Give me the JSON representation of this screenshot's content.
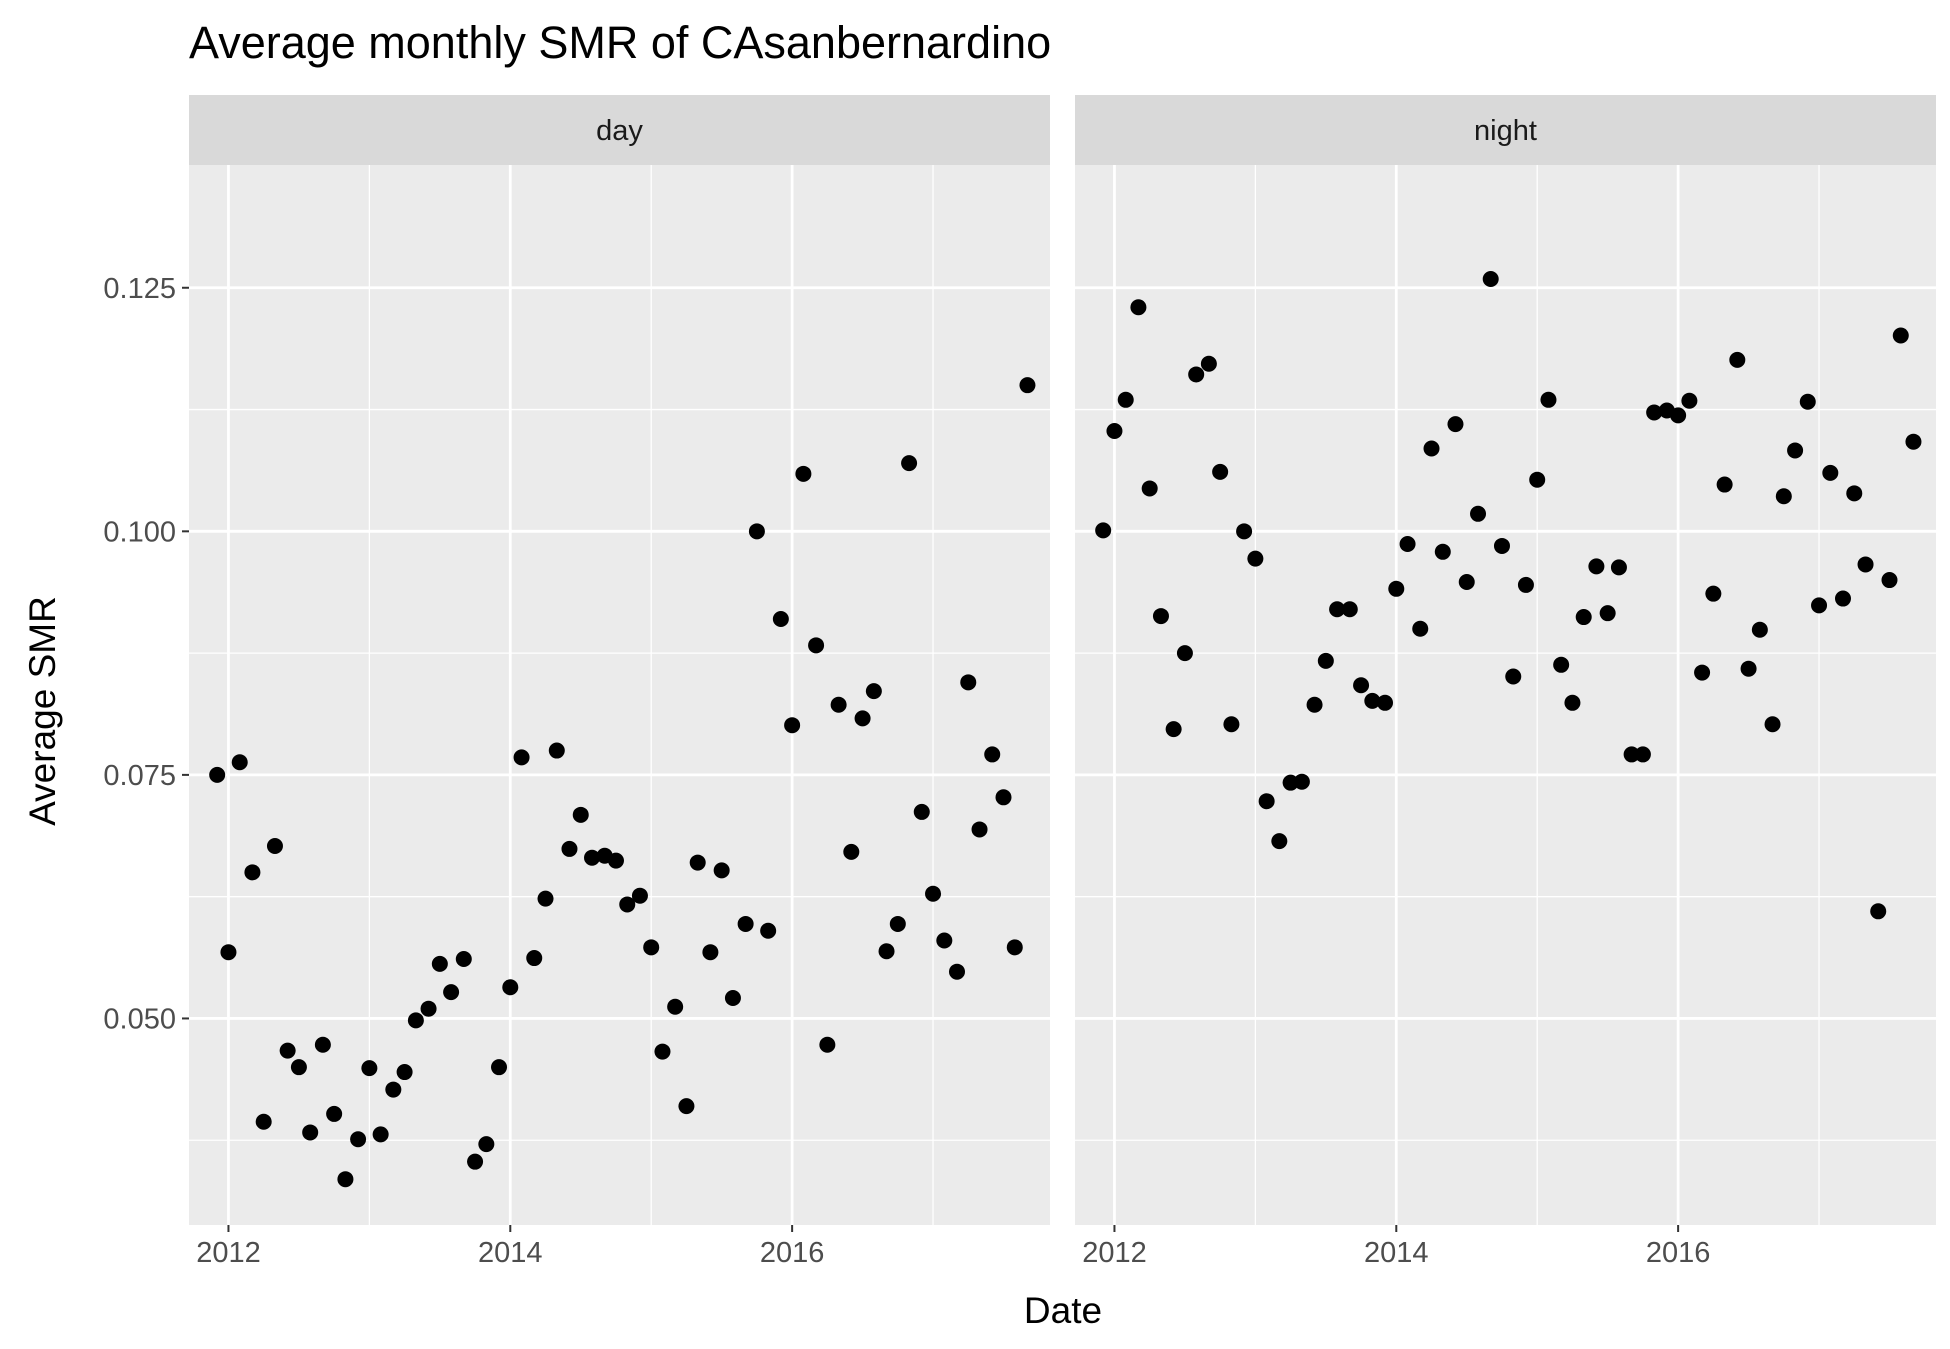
{
  "chart_data": {
    "type": "scatter",
    "title": "Average monthly SMR of CAsanbernardino",
    "xlabel": "Date",
    "ylabel": "Average SMR",
    "xlim": [
      2011.72,
      2017.83
    ],
    "ylim": [
      0.0288,
      0.1376
    ],
    "x_ticks": [
      2012,
      2014,
      2016
    ],
    "x_tick_labels": [
      "2012",
      "2014",
      "2016"
    ],
    "x_minor_ticks": [
      2013,
      2015,
      2017
    ],
    "y_ticks": [
      0.05,
      0.075,
      0.1,
      0.125
    ],
    "y_tick_labels": [
      "0.050",
      "0.075",
      "0.100",
      "0.125"
    ],
    "y_minor_ticks": [
      0.0375,
      0.0625,
      0.0875,
      0.1125
    ],
    "colors": {
      "panel": "#ebebeb",
      "strip": "#d9d9d9",
      "grid": "#ffffff",
      "point": "#000000"
    },
    "panels": [
      {
        "strip": "day",
        "points": [
          [
            2011.92,
            0.075
          ],
          [
            2012.0,
            0.0568
          ],
          [
            2012.08,
            0.0763
          ],
          [
            2012.17,
            0.065
          ],
          [
            2012.25,
            0.0394
          ],
          [
            2012.33,
            0.0677
          ],
          [
            2012.42,
            0.0467
          ],
          [
            2012.5,
            0.045
          ],
          [
            2012.58,
            0.0383
          ],
          [
            2012.67,
            0.0473
          ],
          [
            2012.75,
            0.0402
          ],
          [
            2012.83,
            0.0335
          ],
          [
            2012.92,
            0.0376
          ],
          [
            2013.0,
            0.0449
          ],
          [
            2013.08,
            0.0381
          ],
          [
            2013.17,
            0.0427
          ],
          [
            2013.25,
            0.0445
          ],
          [
            2013.33,
            0.0498
          ],
          [
            2013.42,
            0.051
          ],
          [
            2013.5,
            0.0556
          ],
          [
            2013.58,
            0.0527
          ],
          [
            2013.67,
            0.0561
          ],
          [
            2013.75,
            0.0353
          ],
          [
            2013.83,
            0.0371
          ],
          [
            2013.92,
            0.045
          ],
          [
            2014.0,
            0.0532
          ],
          [
            2014.08,
            0.0768
          ],
          [
            2014.17,
            0.0562
          ],
          [
            2014.25,
            0.0623
          ],
          [
            2014.33,
            0.0775
          ],
          [
            2014.42,
            0.0674
          ],
          [
            2014.5,
            0.0709
          ],
          [
            2014.58,
            0.0665
          ],
          [
            2014.67,
            0.0667
          ],
          [
            2014.75,
            0.0662
          ],
          [
            2014.83,
            0.0617
          ],
          [
            2014.92,
            0.0626
          ],
          [
            2015.0,
            0.0573
          ],
          [
            2015.08,
            0.0466
          ],
          [
            2015.17,
            0.0512
          ],
          [
            2015.25,
            0.041
          ],
          [
            2015.33,
            0.066
          ],
          [
            2015.42,
            0.0568
          ],
          [
            2015.5,
            0.0652
          ],
          [
            2015.58,
            0.0521
          ],
          [
            2015.67,
            0.0597
          ],
          [
            2015.75,
            0.1
          ],
          [
            2015.83,
            0.059
          ],
          [
            2015.92,
            0.091
          ],
          [
            2016.0,
            0.0801
          ],
          [
            2016.08,
            0.1059
          ],
          [
            2016.17,
            0.0883
          ],
          [
            2016.25,
            0.0473
          ],
          [
            2016.33,
            0.0822
          ],
          [
            2016.42,
            0.0671
          ],
          [
            2016.5,
            0.0808
          ],
          [
            2016.58,
            0.0836
          ],
          [
            2016.67,
            0.0569
          ],
          [
            2016.75,
            0.0597
          ],
          [
            2016.83,
            0.107
          ],
          [
            2016.92,
            0.0712
          ],
          [
            2017.0,
            0.0628
          ],
          [
            2017.08,
            0.058
          ],
          [
            2017.17,
            0.0548
          ],
          [
            2017.25,
            0.0845
          ],
          [
            2017.33,
            0.0694
          ],
          [
            2017.42,
            0.0771
          ],
          [
            2017.5,
            0.0727
          ],
          [
            2017.58,
            0.0573
          ],
          [
            2017.67,
            0.115
          ]
        ]
      },
      {
        "strip": "night",
        "points": [
          [
            2011.92,
            0.1001
          ],
          [
            2012.0,
            0.1103
          ],
          [
            2012.08,
            0.1135
          ],
          [
            2012.17,
            0.123
          ],
          [
            2012.25,
            0.1044
          ],
          [
            2012.33,
            0.0913
          ],
          [
            2012.42,
            0.0797
          ],
          [
            2012.5,
            0.0875
          ],
          [
            2012.58,
            0.1161
          ],
          [
            2012.67,
            0.1172
          ],
          [
            2012.75,
            0.1061
          ],
          [
            2012.83,
            0.0802
          ],
          [
            2012.92,
            0.1
          ],
          [
            2013.0,
            0.0972
          ],
          [
            2013.08,
            0.0723
          ],
          [
            2013.17,
            0.0682
          ],
          [
            2013.25,
            0.0742
          ],
          [
            2013.33,
            0.0743
          ],
          [
            2013.42,
            0.0822
          ],
          [
            2013.5,
            0.0867
          ],
          [
            2013.58,
            0.092
          ],
          [
            2013.67,
            0.092
          ],
          [
            2013.75,
            0.0842
          ],
          [
            2013.83,
            0.0826
          ],
          [
            2013.92,
            0.0824
          ],
          [
            2014.0,
            0.0941
          ],
          [
            2014.08,
            0.0987
          ],
          [
            2014.17,
            0.09
          ],
          [
            2014.25,
            0.1085
          ],
          [
            2014.33,
            0.0979
          ],
          [
            2014.42,
            0.111
          ],
          [
            2014.5,
            0.0948
          ],
          [
            2014.58,
            0.1018
          ],
          [
            2014.67,
            0.1259
          ],
          [
            2014.75,
            0.0985
          ],
          [
            2014.83,
            0.0851
          ],
          [
            2014.92,
            0.0945
          ],
          [
            2015.0,
            0.1053
          ],
          [
            2015.08,
            0.1135
          ],
          [
            2015.17,
            0.0863
          ],
          [
            2015.25,
            0.0824
          ],
          [
            2015.33,
            0.0912
          ],
          [
            2015.42,
            0.0964
          ],
          [
            2015.5,
            0.0916
          ],
          [
            2015.58,
            0.0963
          ],
          [
            2015.67,
            0.0771
          ],
          [
            2015.75,
            0.0771
          ],
          [
            2015.83,
            0.1122
          ],
          [
            2015.92,
            0.1124
          ],
          [
            2016.0,
            0.1119
          ],
          [
            2016.08,
            0.1134
          ],
          [
            2016.17,
            0.0855
          ],
          [
            2016.25,
            0.0936
          ],
          [
            2016.33,
            0.1048
          ],
          [
            2016.42,
            0.1176
          ],
          [
            2016.5,
            0.0859
          ],
          [
            2016.58,
            0.0899
          ],
          [
            2016.67,
            0.0802
          ],
          [
            2016.75,
            0.1036
          ],
          [
            2016.83,
            0.1083
          ],
          [
            2016.92,
            0.1133
          ],
          [
            2017.0,
            0.0924
          ],
          [
            2017.08,
            0.106
          ],
          [
            2017.17,
            0.0931
          ],
          [
            2017.25,
            0.1039
          ],
          [
            2017.33,
            0.0966
          ],
          [
            2017.42,
            0.061
          ],
          [
            2017.5,
            0.095
          ],
          [
            2017.58,
            0.1201
          ],
          [
            2017.67,
            0.1092
          ]
        ]
      }
    ]
  }
}
